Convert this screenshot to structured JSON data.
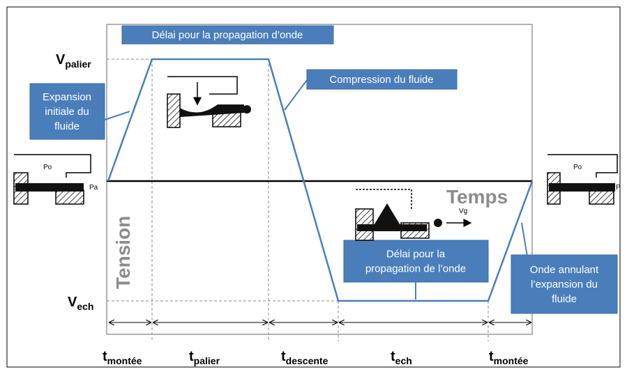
{
  "levels": [
    {
      "main": "V",
      "sub": "palier"
    },
    {
      "main": "V",
      "sub": "ech"
    }
  ],
  "times": [
    {
      "main": "t",
      "sub": "montée"
    },
    {
      "main": "t",
      "sub": "palier"
    },
    {
      "main": "t",
      "sub": "descente"
    },
    {
      "main": "t",
      "sub": "ech"
    },
    {
      "main": "t",
      "sub": "montée"
    }
  ],
  "callouts": [
    {
      "lines": [
        "Délai pour la propagation d’onde"
      ]
    },
    {
      "lines": [
        "Expansion",
        "initiale du",
        "fluide"
      ]
    },
    {
      "lines": [
        "Compression du fluide"
      ]
    },
    {
      "lines": [
        "Délai pour la",
        "propagation de l’onde"
      ]
    },
    {
      "lines": [
        "Onde annulant",
        "l’expansion du",
        "fluide"
      ]
    }
  ],
  "axis_labels": {
    "x": "Temps",
    "y": "Tension"
  },
  "sketch_labels": {
    "left_top": "Po",
    "left_side": "Pa",
    "right_top": "Po",
    "right_side": "P",
    "bottom_arrow": "Vg"
  }
}
